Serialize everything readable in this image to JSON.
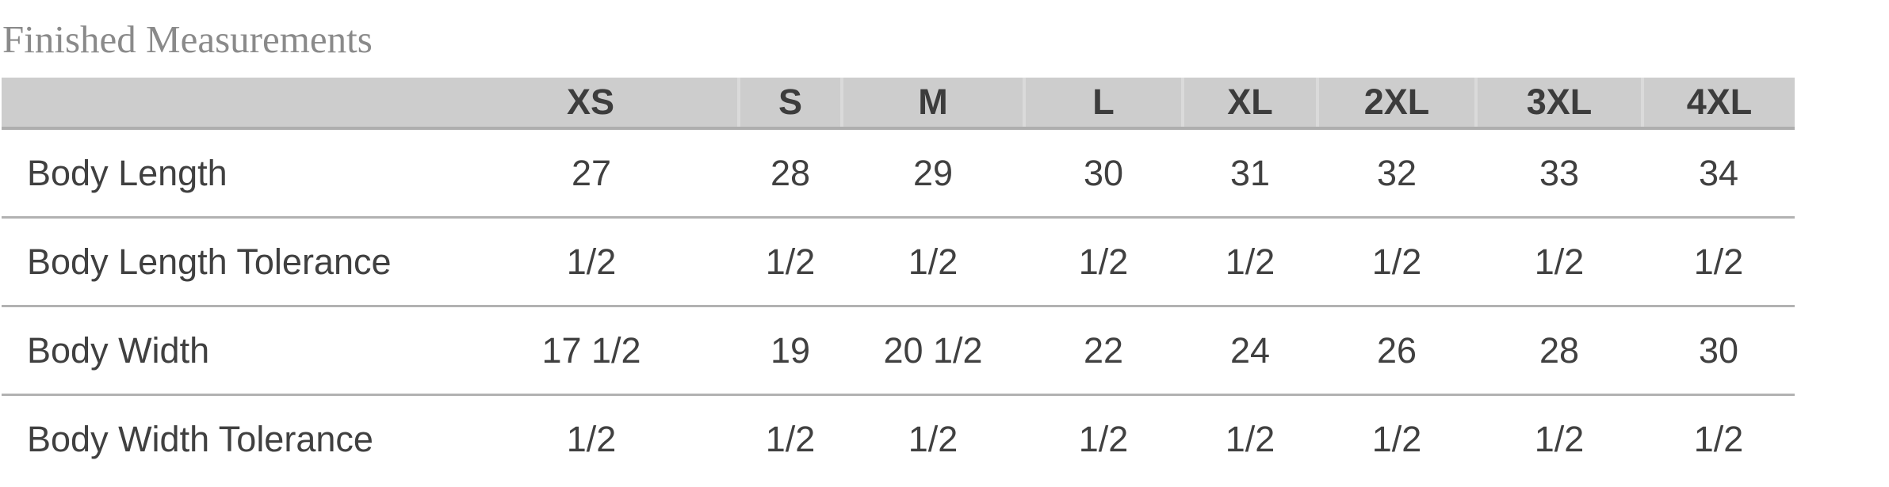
{
  "title": "Finished Measurements",
  "table": {
    "size_headers": [
      "XS",
      "S",
      "M",
      "L",
      "XL",
      "2XL",
      "3XL",
      "4XL"
    ],
    "rows": [
      {
        "label": "Body Length",
        "values": [
          "27",
          "28",
          "29",
          "30",
          "31",
          "32",
          "33",
          "34"
        ]
      },
      {
        "label": "Body Length Tolerance",
        "values": [
          "1/2",
          "1/2",
          "1/2",
          "1/2",
          "1/2",
          "1/2",
          "1/2",
          "1/2"
        ]
      },
      {
        "label": "Body Width",
        "values": [
          "17 1/2",
          "19",
          "20 1/2",
          "22",
          "24",
          "26",
          "28",
          "30"
        ]
      },
      {
        "label": "Body Width Tolerance",
        "values": [
          "1/2",
          "1/2",
          "1/2",
          "1/2",
          "1/2",
          "1/2",
          "1/2",
          "1/2"
        ]
      }
    ],
    "colors": {
      "header_background": "#cdcdcd",
      "header_text": "#3c3c3c",
      "header_bottom_border": "#aeaeae",
      "header_column_divider": "#dadada",
      "row_separator": "#b2b2b2",
      "body_text": "#404040",
      "title_text": "#8a8a8a",
      "page_background": "#ffffff"
    }
  }
}
